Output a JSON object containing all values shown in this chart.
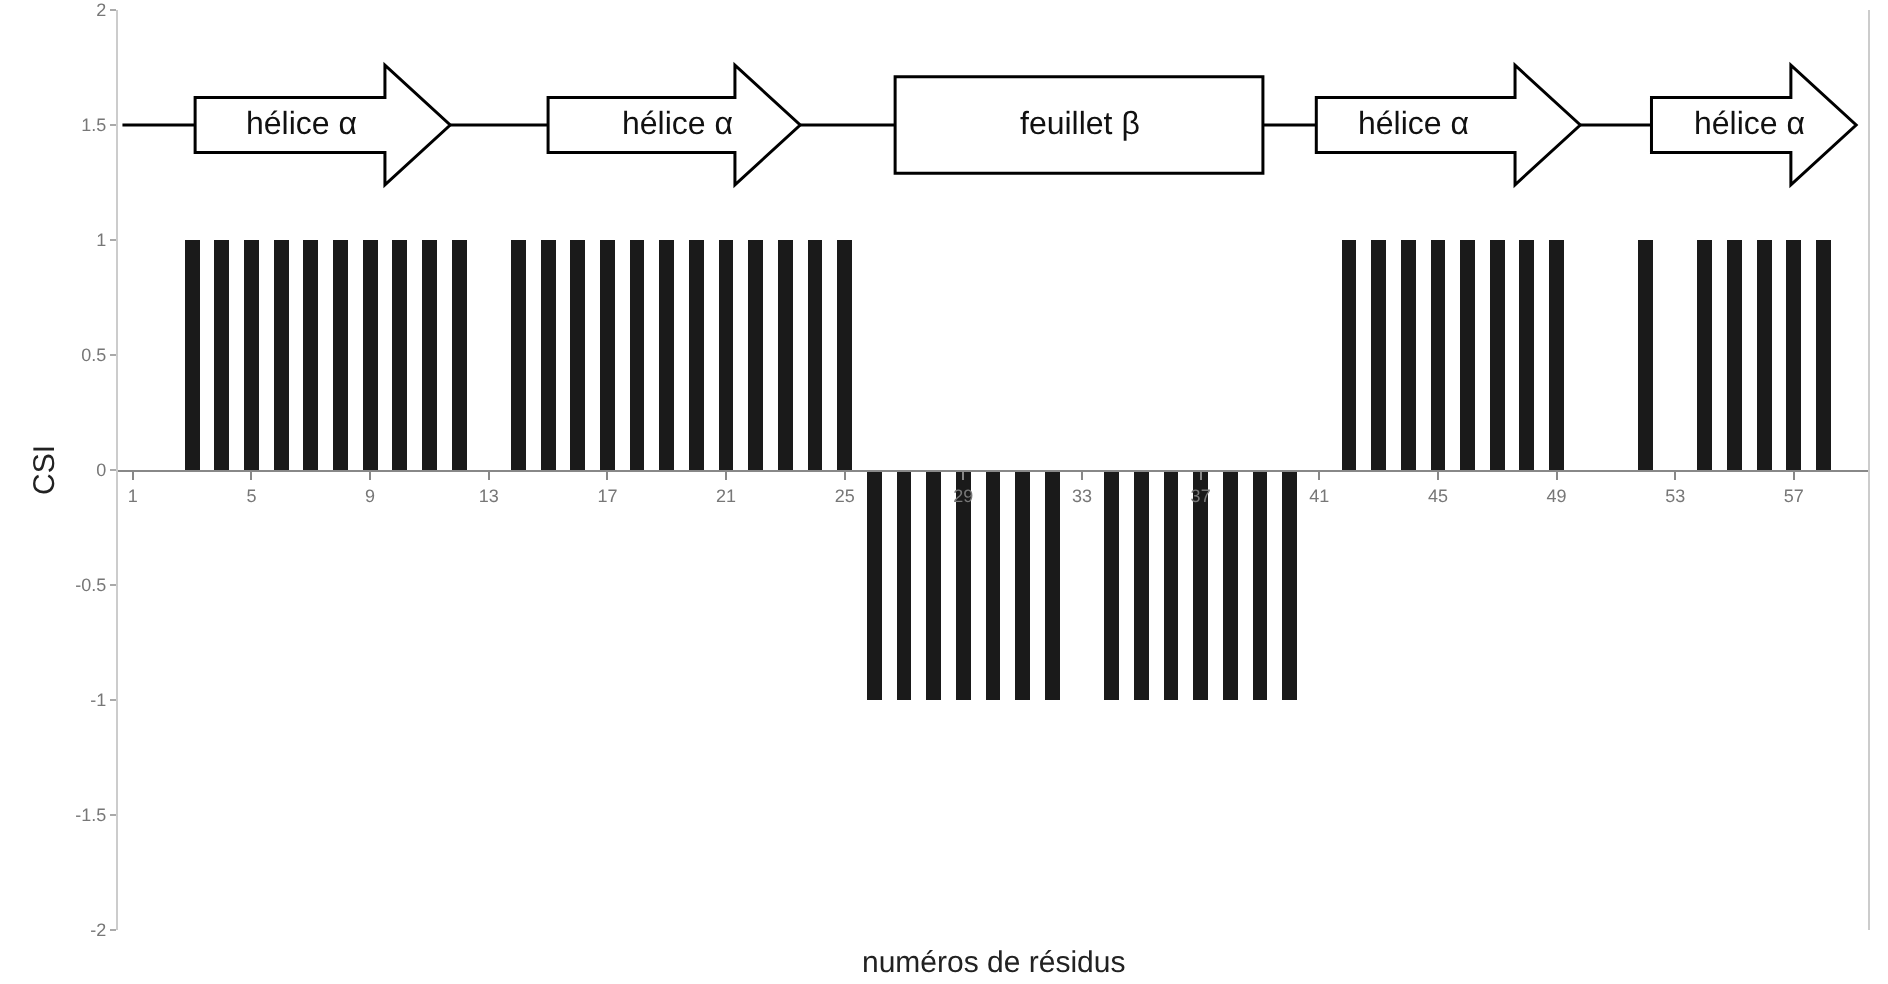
{
  "chart_data": {
    "type": "bar",
    "xlabel": "numéros de résidus",
    "ylabel": "CSI",
    "color": "#1a1a1a",
    "x": [
      1,
      2,
      3,
      4,
      5,
      6,
      7,
      8,
      9,
      10,
      11,
      12,
      13,
      14,
      15,
      16,
      17,
      18,
      19,
      20,
      21,
      22,
      23,
      24,
      25,
      26,
      27,
      28,
      29,
      30,
      31,
      32,
      33,
      34,
      35,
      36,
      37,
      38,
      39,
      40,
      41,
      42,
      43,
      44,
      45,
      46,
      47,
      48,
      49,
      50,
      51,
      52,
      53,
      54,
      55,
      56,
      57,
      58
    ],
    "values": [
      0,
      0,
      1,
      1,
      1,
      1,
      1,
      1,
      1,
      1,
      1,
      1,
      0,
      1,
      1,
      1,
      1,
      1,
      1,
      1,
      1,
      1,
      1,
      1,
      1,
      -1,
      -1,
      -1,
      -1,
      -1,
      -1,
      -1,
      0,
      -1,
      -1,
      -1,
      -1,
      -1,
      -1,
      -1,
      0,
      1,
      1,
      1,
      1,
      1,
      1,
      1,
      1,
      0,
      0,
      1,
      0,
      1,
      1,
      1,
      1,
      1
    ],
    "xlim": [
      0.5,
      59.5
    ],
    "xticks": [
      1,
      5,
      9,
      13,
      17,
      21,
      25,
      29,
      33,
      37,
      41,
      45,
      49,
      53,
      57
    ],
    "ylim": [
      -2,
      2
    ],
    "yticks": [
      -2,
      -1.5,
      -1,
      -0.5,
      0,
      0.5,
      1,
      1.5,
      2
    ],
    "annotations": [
      "hélice α",
      "hélice α",
      "feuillet β",
      "hélice α",
      "hélice α"
    ]
  }
}
